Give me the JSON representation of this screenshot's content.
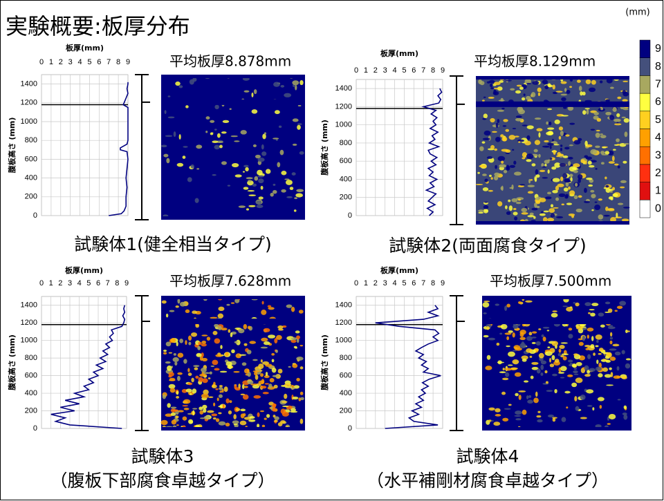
{
  "title": "実験概要:板厚分布",
  "colorbar": {
    "unit": "(mm)",
    "ticks": [
      0,
      1,
      2,
      3,
      4,
      5,
      6,
      7,
      8,
      9
    ],
    "colors": [
      "#ffffff",
      "#e01010",
      "#ff3010",
      "#ff7000",
      "#ffa000",
      "#ffd020",
      "#ffff40",
      "#a8a860",
      "#44507c",
      "#000080"
    ]
  },
  "chart_data": [
    {
      "type": "line",
      "mean_label": "平均板厚8.878mm",
      "caption": [
        "試験体1(健全相当タイプ)"
      ],
      "x_label": "板厚(mm)",
      "y_label": "腹板高さ (mm)",
      "xlim": [
        0,
        9
      ],
      "xticks": [
        0,
        1,
        2,
        3,
        4,
        5,
        6,
        7,
        8,
        9
      ],
      "ylim": [
        0,
        1500
      ],
      "yticks": [
        0,
        200,
        400,
        600,
        800,
        1000,
        1200,
        1400
      ],
      "grid": true,
      "hline": 1180,
      "series": [
        {
          "color": "#000080",
          "heights": [
            0,
            20,
            50,
            100,
            200,
            300,
            400,
            500,
            600,
            680,
            700,
            720,
            760,
            800,
            900,
            1000,
            1100,
            1150,
            1180,
            1200,
            1250,
            1300,
            1350,
            1400,
            1420
          ],
          "values": [
            7.0,
            8.3,
            8.6,
            8.8,
            8.8,
            8.9,
            8.8,
            8.9,
            9.0,
            8.9,
            8.2,
            8.2,
            8.9,
            9.0,
            9.0,
            9.0,
            9.0,
            9.0,
            8.5,
            8.6,
            8.8,
            9.0,
            8.9,
            9.0,
            9.0
          ]
        }
      ]
    },
    {
      "type": "line",
      "mean_label": "平均板厚8.129mm",
      "caption": [
        "試験体2(両面腐食タイプ)"
      ],
      "x_label": "板厚(mm)",
      "y_label": "腹板高さ (mm)",
      "xlim": [
        0,
        9
      ],
      "xticks": [
        0,
        1,
        2,
        3,
        4,
        5,
        6,
        7,
        8,
        9
      ],
      "ylim": [
        0,
        1500
      ],
      "yticks": [
        0,
        200,
        400,
        600,
        800,
        1000,
        1200,
        1400
      ],
      "grid": true,
      "hline": 1180,
      "series": [
        {
          "color": "#000080",
          "heights": [
            0,
            40,
            80,
            120,
            160,
            200,
            240,
            280,
            320,
            360,
            400,
            440,
            480,
            520,
            560,
            600,
            640,
            680,
            720,
            760,
            800,
            840,
            880,
            920,
            960,
            1000,
            1040,
            1080,
            1120,
            1160,
            1200,
            1240,
            1280,
            1320,
            1360,
            1400
          ],
          "values": [
            7.6,
            8.0,
            7.4,
            8.2,
            7.5,
            7.9,
            8.3,
            7.3,
            8.1,
            7.7,
            8.4,
            7.6,
            8.0,
            7.5,
            8.3,
            7.8,
            8.4,
            7.7,
            7.5,
            8.6,
            7.6,
            8.2,
            7.9,
            8.5,
            7.7,
            8.3,
            8.0,
            8.4,
            7.8,
            8.3,
            7.0,
            8.6,
            8.8,
            8.5,
            8.9,
            8.7
          ]
        }
      ]
    },
    {
      "type": "line",
      "mean_label": "平均板厚7.628mm",
      "caption": [
        "試験体3",
        "（腹板下部腐食卓越タイプ）"
      ],
      "x_label": "板厚(mm)",
      "y_label": "腹板高さ (mm)",
      "xlim": [
        0,
        9
      ],
      "xticks": [
        0,
        1,
        2,
        3,
        4,
        5,
        6,
        7,
        8,
        9
      ],
      "ylim": [
        0,
        1500
      ],
      "yticks": [
        0,
        200,
        400,
        600,
        800,
        1000,
        1200,
        1400
      ],
      "grid": true,
      "hline": 1180,
      "series": [
        {
          "color": "#000080",
          "heights": [
            0,
            40,
            80,
            120,
            160,
            200,
            240,
            280,
            320,
            360,
            400,
            440,
            480,
            520,
            560,
            600,
            640,
            680,
            720,
            760,
            800,
            840,
            880,
            920,
            960,
            1000,
            1040,
            1080,
            1120,
            1160,
            1200,
            1240,
            1280,
            1320,
            1360,
            1400
          ],
          "values": [
            8.5,
            3.0,
            1.5,
            2.5,
            1.0,
            3.5,
            2.0,
            4.0,
            2.5,
            4.5,
            3.5,
            5.0,
            4.5,
            5.5,
            5.0,
            6.0,
            5.5,
            6.5,
            5.8,
            6.8,
            6.2,
            7.0,
            6.5,
            7.2,
            6.8,
            7.5,
            7.2,
            7.6,
            7.4,
            8.5,
            8.7,
            8.8,
            8.6,
            8.8,
            8.7,
            8.8
          ]
        }
      ]
    },
    {
      "type": "line",
      "mean_label": "平均板厚7.500mm",
      "caption": [
        "試験体4",
        "（水平補剛材腐食卓越タイプ）"
      ],
      "x_label": "板厚(mm)",
      "y_label": "腹板高さ (mm)",
      "xlim": [
        0,
        9
      ],
      "xticks": [
        0,
        1,
        2,
        3,
        4,
        5,
        6,
        7,
        8,
        9
      ],
      "ylim": [
        0,
        1500
      ],
      "yticks": [
        0,
        200,
        400,
        600,
        800,
        1000,
        1200,
        1400
      ],
      "grid": true,
      "hline": 1180,
      "series": [
        {
          "color": "#000080",
          "heights": [
            0,
            40,
            80,
            120,
            160,
            200,
            240,
            280,
            320,
            360,
            400,
            440,
            480,
            520,
            560,
            600,
            640,
            680,
            720,
            760,
            800,
            840,
            880,
            920,
            960,
            1000,
            1040,
            1080,
            1120,
            1160,
            1200,
            1240,
            1280,
            1320,
            1360,
            1400
          ],
          "values": [
            3.0,
            8.5,
            6.0,
            5.5,
            6.5,
            5.8,
            6.8,
            6.2,
            7.0,
            6.5,
            7.2,
            6.8,
            7.5,
            6.9,
            7.6,
            8.8,
            7.0,
            7.5,
            6.8,
            7.3,
            6.5,
            7.0,
            6.2,
            6.8,
            7.5,
            8.5,
            8.0,
            8.6,
            8.2,
            4.5,
            2.0,
            7.0,
            8.5,
            7.5,
            8.5,
            8.2
          ]
        }
      ]
    }
  ]
}
